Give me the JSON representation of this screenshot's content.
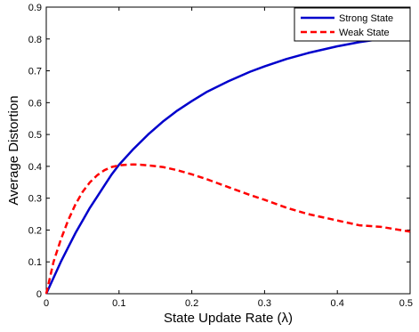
{
  "chart_data": {
    "type": "line",
    "xlabel": "State Update Rate (λ)",
    "ylabel": "Average Distortion",
    "xlim": [
      0,
      0.5
    ],
    "ylim": [
      0,
      0.9
    ],
    "xticks": [
      "0",
      "0.1",
      "0.2",
      "0.3",
      "0.4",
      "0.5"
    ],
    "yticks": [
      "0",
      "0.1",
      "0.2",
      "0.3",
      "0.4",
      "0.5",
      "0.6",
      "0.7",
      "0.8",
      "0.9"
    ],
    "grid": false,
    "legend_position": "top-right",
    "series": [
      {
        "name": "Strong State",
        "color": "#0000cc",
        "style": "solid",
        "x": [
          0,
          0.01,
          0.02,
          0.03,
          0.04,
          0.05,
          0.06,
          0.07,
          0.08,
          0.09,
          0.1,
          0.12,
          0.14,
          0.16,
          0.18,
          0.2,
          0.22,
          0.25,
          0.28,
          0.3,
          0.33,
          0.36,
          0.4,
          0.43,
          0.46,
          0.5
        ],
        "y": [
          0,
          0.05,
          0.1,
          0.145,
          0.19,
          0.23,
          0.27,
          0.305,
          0.34,
          0.375,
          0.405,
          0.455,
          0.5,
          0.54,
          0.575,
          0.605,
          0.633,
          0.667,
          0.697,
          0.714,
          0.737,
          0.756,
          0.777,
          0.79,
          0.8,
          0.81
        ]
      },
      {
        "name": "Weak State",
        "color": "#ff0000",
        "style": "dashed",
        "x": [
          0,
          0.01,
          0.02,
          0.03,
          0.04,
          0.05,
          0.06,
          0.07,
          0.08,
          0.09,
          0.1,
          0.11,
          0.12,
          0.13,
          0.14,
          0.16,
          0.18,
          0.2,
          0.22,
          0.25,
          0.28,
          0.3,
          0.33,
          0.36,
          0.4,
          0.43,
          0.46,
          0.5
        ],
        "y": [
          0,
          0.1,
          0.17,
          0.23,
          0.28,
          0.32,
          0.35,
          0.372,
          0.388,
          0.398,
          0.403,
          0.405,
          0.406,
          0.405,
          0.403,
          0.398,
          0.388,
          0.375,
          0.36,
          0.335,
          0.31,
          0.295,
          0.27,
          0.25,
          0.23,
          0.215,
          0.21,
          0.195
        ]
      }
    ]
  }
}
